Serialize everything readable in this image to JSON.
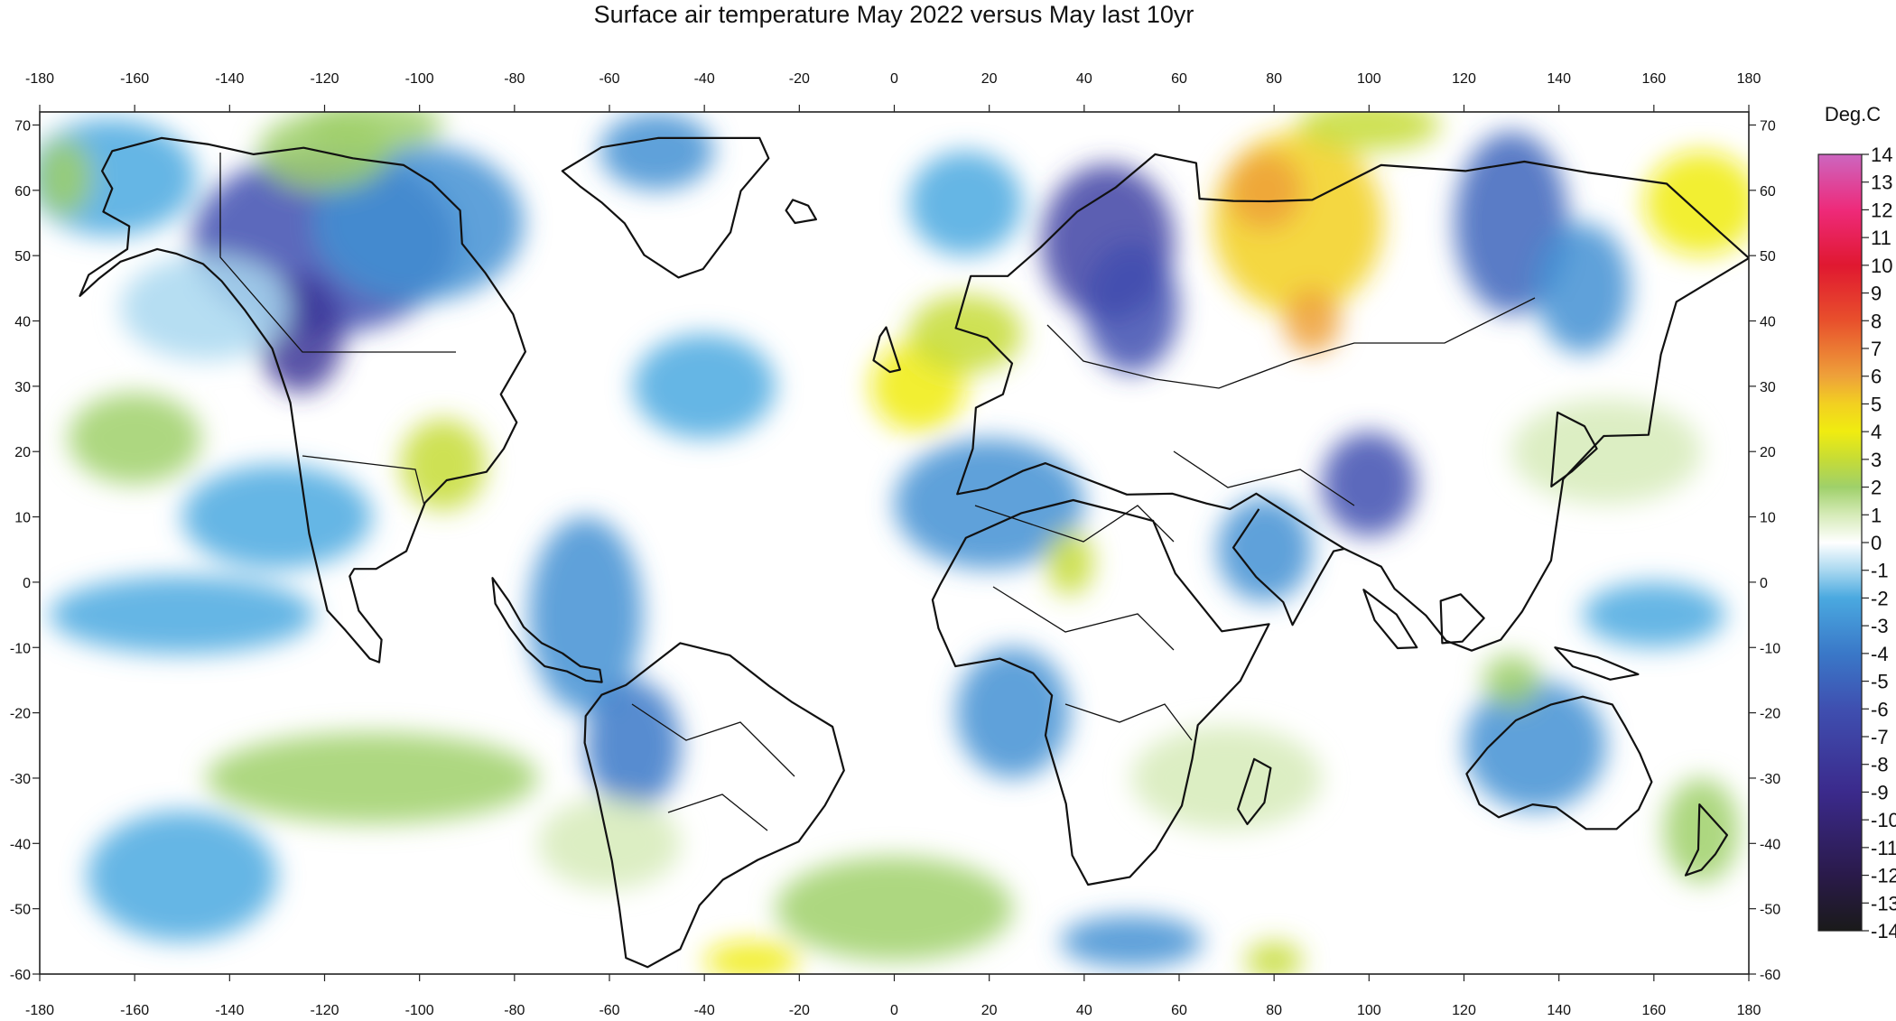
{
  "title": "Surface air temperature May 2022 versus May last 10yr",
  "axes": {
    "lon_ticks": [
      -180,
      -160,
      -140,
      -120,
      -100,
      -80,
      -60,
      -40,
      -20,
      0,
      20,
      40,
      60,
      80,
      100,
      120,
      140,
      160,
      180
    ],
    "lat_ticks": [
      70,
      60,
      50,
      40,
      30,
      20,
      10,
      0,
      -10,
      -20,
      -30,
      -40,
      -50,
      -60
    ],
    "lon_range": [
      -180,
      180
    ],
    "lat_range": [
      -60,
      72
    ]
  },
  "colorbar": {
    "unit": "Deg.C",
    "ticks": [
      14,
      13,
      12,
      11,
      10,
      9,
      8,
      7,
      6,
      5,
      4,
      3,
      2,
      1,
      0,
      -1,
      -2,
      -3,
      -4,
      -5,
      -6,
      -7,
      -8,
      -9,
      -10,
      -11,
      -12,
      -13,
      -14
    ],
    "range": [
      -14,
      14
    ],
    "stops": [
      {
        "v": -14,
        "c": "#1a1a1a"
      },
      {
        "v": -12,
        "c": "#2a1a4a"
      },
      {
        "v": -9,
        "c": "#3b2a8c"
      },
      {
        "v": -6,
        "c": "#3f4fb0"
      },
      {
        "v": -4,
        "c": "#3a78c8"
      },
      {
        "v": -2,
        "c": "#4aa9e0"
      },
      {
        "v": -1,
        "c": "#a9d8f0"
      },
      {
        "v": 0,
        "c": "#ffffff"
      },
      {
        "v": 1,
        "c": "#d6ebb8"
      },
      {
        "v": 2,
        "c": "#9fd06a"
      },
      {
        "v": 3,
        "c": "#c6dc36"
      },
      {
        "v": 4,
        "c": "#f0ec10"
      },
      {
        "v": 5,
        "c": "#f2d021"
      },
      {
        "v": 6,
        "c": "#eea13a"
      },
      {
        "v": 8,
        "c": "#e8502c"
      },
      {
        "v": 10,
        "c": "#e01830"
      },
      {
        "v": 12,
        "c": "#ee2a7a"
      },
      {
        "v": 14,
        "c": "#cc66c0"
      }
    ]
  },
  "anomalies": [
    {
      "lon": -120,
      "lat": 52,
      "v": -6,
      "rlon": 28,
      "rlat": 14
    },
    {
      "lon": -125,
      "lat": 38,
      "v": -8,
      "rlon": 9,
      "rlat": 9
    },
    {
      "lon": -100,
      "lat": 55,
      "v": -3,
      "rlon": 22,
      "rlat": 12
    },
    {
      "lon": -165,
      "lat": 62,
      "v": -2,
      "rlon": 18,
      "rlat": 9
    },
    {
      "lon": -95,
      "lat": 18,
      "v": 3,
      "rlon": 9,
      "rlat": 7
    },
    {
      "lon": -160,
      "lat": 22,
      "v": 2,
      "rlon": 14,
      "rlat": 7
    },
    {
      "lon": -145,
      "lat": 42,
      "v": -1,
      "rlon": 18,
      "rlat": 8
    },
    {
      "lon": -130,
      "lat": 10,
      "v": -2,
      "rlon": 20,
      "rlat": 8
    },
    {
      "lon": -150,
      "lat": -5,
      "v": -2,
      "rlon": 28,
      "rlat": 6
    },
    {
      "lon": -110,
      "lat": -30,
      "v": 2,
      "rlon": 35,
      "rlat": 7
    },
    {
      "lon": -175,
      "lat": 62,
      "v": 2,
      "rlon": 6,
      "rlat": 6
    },
    {
      "lon": -120,
      "lat": 66,
      "v": 2,
      "rlon": 14,
      "rlat": 6
    },
    {
      "lon": -50,
      "lat": 66,
      "v": -3,
      "rlon": 12,
      "rlat": 6
    },
    {
      "lon": -65,
      "lat": -5,
      "v": -3,
      "rlon": 12,
      "rlat": 15
    },
    {
      "lon": -55,
      "lat": -25,
      "v": -4,
      "rlon": 10,
      "rlat": 10
    },
    {
      "lon": -60,
      "lat": -40,
      "v": 1,
      "rlon": 15,
      "rlat": 7
    },
    {
      "lon": -30,
      "lat": -58,
      "v": 4,
      "rlon": 10,
      "rlat": 3
    },
    {
      "lon": -40,
      "lat": 30,
      "v": -2,
      "rlon": 15,
      "rlat": 8
    },
    {
      "lon": 5,
      "lat": 30,
      "v": 4,
      "rlon": 10,
      "rlat": 7
    },
    {
      "lon": 15,
      "lat": 38,
      "v": 3,
      "rlon": 12,
      "rlat": 6
    },
    {
      "lon": 20,
      "lat": 12,
      "v": -3,
      "rlon": 20,
      "rlat": 10
    },
    {
      "lon": 25,
      "lat": -20,
      "v": -3,
      "rlon": 12,
      "rlat": 10
    },
    {
      "lon": 37,
      "lat": 3,
      "v": 3,
      "rlon": 5,
      "rlat": 5
    },
    {
      "lon": 45,
      "lat": 52,
      "v": -7,
      "rlon": 14,
      "rlat": 12
    },
    {
      "lon": 50,
      "lat": 42,
      "v": -6,
      "rlon": 10,
      "rlat": 10
    },
    {
      "lon": 15,
      "lat": 58,
      "v": -2,
      "rlon": 12,
      "rlat": 8
    },
    {
      "lon": 85,
      "lat": 55,
      "v": 5,
      "rlon": 18,
      "rlat": 14
    },
    {
      "lon": 78,
      "lat": 60,
      "v": 6,
      "rlon": 8,
      "rlat": 6
    },
    {
      "lon": 88,
      "lat": 40,
      "v": 6,
      "rlon": 6,
      "rlat": 5
    },
    {
      "lon": 130,
      "lat": 55,
      "v": -5,
      "rlon": 12,
      "rlat": 14
    },
    {
      "lon": 145,
      "lat": 45,
      "v": -3,
      "rlon": 10,
      "rlat": 10
    },
    {
      "lon": 170,
      "lat": 58,
      "v": 4,
      "rlon": 12,
      "rlat": 8
    },
    {
      "lon": 100,
      "lat": 15,
      "v": -6,
      "rlon": 10,
      "rlat": 8
    },
    {
      "lon": 78,
      "lat": 5,
      "v": -3,
      "rlon": 10,
      "rlat": 8
    },
    {
      "lon": 135,
      "lat": -25,
      "v": -3,
      "rlon": 15,
      "rlat": 10
    },
    {
      "lon": 130,
      "lat": -15,
      "v": 2,
      "rlon": 6,
      "rlat": 4
    },
    {
      "lon": 170,
      "lat": -38,
      "v": 2,
      "rlon": 8,
      "rlat": 8
    },
    {
      "lon": 150,
      "lat": 20,
      "v": 1,
      "rlon": 20,
      "rlat": 8
    },
    {
      "lon": 160,
      "lat": -5,
      "v": -2,
      "rlon": 15,
      "rlat": 5
    },
    {
      "lon": 70,
      "lat": -30,
      "v": 1,
      "rlon": 20,
      "rlat": 8
    },
    {
      "lon": 50,
      "lat": -55,
      "v": -3,
      "rlon": 15,
      "rlat": 4
    },
    {
      "lon": 80,
      "lat": -58,
      "v": 3,
      "rlon": 6,
      "rlat": 3
    },
    {
      "lon": 0,
      "lat": -50,
      "v": 2,
      "rlon": 25,
      "rlat": 8
    },
    {
      "lon": -150,
      "lat": -45,
      "v": -2,
      "rlon": 20,
      "rlat": 10
    },
    {
      "lon": -110,
      "lat": 70,
      "v": 2,
      "rlon": 15,
      "rlat": 4
    },
    {
      "lon": 100,
      "lat": 70,
      "v": 3,
      "rlon": 15,
      "rlat": 4
    }
  ]
}
